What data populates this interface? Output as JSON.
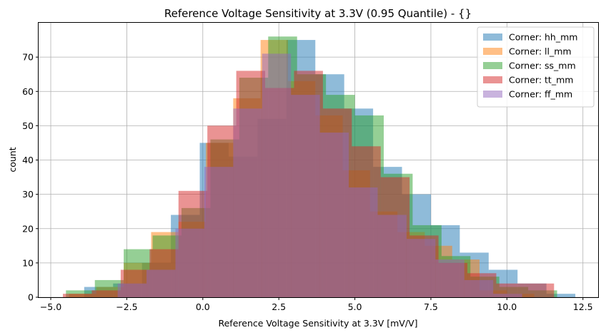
{
  "chart_data": {
    "type": "bar",
    "title": "Reference Voltage Sensitivity at 3.3V (0.95 Quantile) - {}",
    "xlabel": "Reference Voltage Sensitivity at 3.3V [mV/V]",
    "ylabel": "count",
    "xlim": [
      -5.4,
      13.0
    ],
    "ylim": [
      0,
      80
    ],
    "x_ticks": [
      -5.0,
      -2.5,
      0.0,
      2.5,
      5.0,
      7.5,
      10.0,
      12.5
    ],
    "x_tick_labels": [
      "−5.0",
      "−2.5",
      "0.0",
      "2.5",
      "5.0",
      "7.5",
      "10.0",
      "12.5"
    ],
    "y_ticks": [
      0,
      10,
      20,
      30,
      40,
      50,
      60,
      70
    ],
    "y_tick_labels": [
      "0",
      "10",
      "20",
      "30",
      "40",
      "50",
      "60",
      "70"
    ],
    "grid": true,
    "legend_position": "top-right",
    "series": [
      {
        "name": "Corner: hh_mm",
        "color": "#1f77b4",
        "bin_start": -3.9,
        "bin_width": 0.95,
        "values": [
          3,
          4,
          10,
          24,
          45,
          41,
          52,
          75,
          65,
          55,
          38,
          30,
          21,
          13,
          8,
          4,
          1
        ]
      },
      {
        "name": "Corner: ll_mm",
        "color": "#ff7f0e",
        "bin_start": -4.4,
        "bin_width": 0.9,
        "values": [
          1,
          3,
          10,
          19,
          22,
          45,
          58,
          75,
          63,
          53,
          37,
          25,
          19,
          15,
          11,
          2,
          1
        ]
      },
      {
        "name": "Corner: ss_mm",
        "color": "#2ca02c",
        "bin_start": -4.5,
        "bin_width": 0.95,
        "values": [
          2,
          5,
          14,
          18,
          26,
          46,
          64,
          76,
          65,
          59,
          53,
          36,
          21,
          12,
          6,
          3,
          2
        ]
      },
      {
        "name": "Corner: tt_mm",
        "color": "#d62728",
        "bin_start": -4.6,
        "bin_width": 0.95,
        "values": [
          1,
          2,
          8,
          14,
          31,
          50,
          66,
          61,
          66,
          55,
          44,
          35,
          18,
          10,
          7,
          4,
          4
        ]
      },
      {
        "name": "Corner: ff_mm",
        "color": "#9467bd",
        "bin_start": -2.8,
        "bin_width": 0.95,
        "values": [
          4,
          8,
          20,
          38,
          55,
          71,
          59,
          48,
          32,
          24,
          17,
          11,
          5,
          1
        ]
      }
    ]
  }
}
